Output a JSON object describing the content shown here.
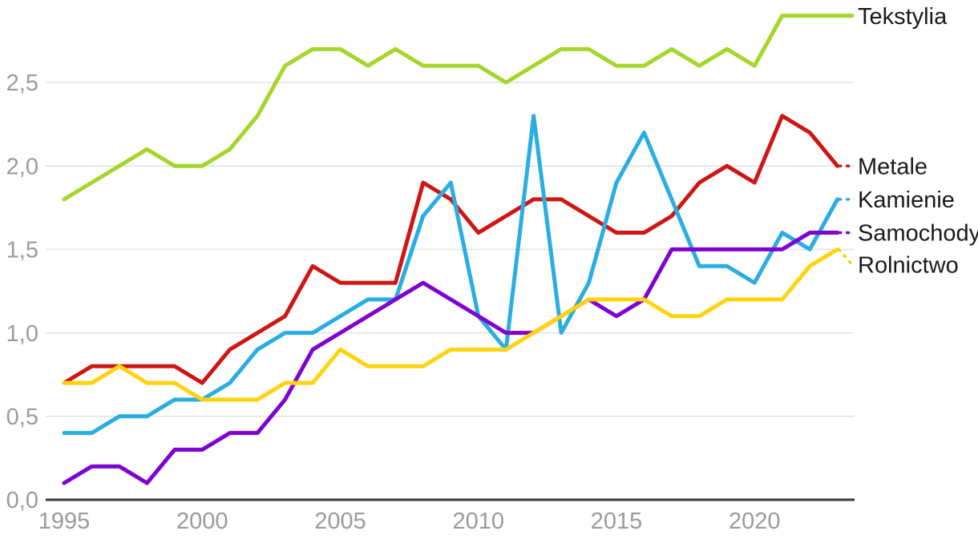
{
  "chart_data": {
    "type": "line",
    "x": [
      1995,
      1996,
      1997,
      1998,
      1999,
      2000,
      2001,
      2002,
      2003,
      2004,
      2005,
      2006,
      2007,
      2008,
      2009,
      2010,
      2011,
      2012,
      2013,
      2014,
      2015,
      2016,
      2017,
      2018,
      2019,
      2020,
      2021,
      2022,
      2023
    ],
    "series": [
      {
        "name": "Tekstylia",
        "color": "#a5d62b",
        "values": [
          1.8,
          1.9,
          2.0,
          2.1,
          2.0,
          2.0,
          2.1,
          2.3,
          2.6,
          2.7,
          2.7,
          2.6,
          2.7,
          2.6,
          2.6,
          2.6,
          2.5,
          2.6,
          2.7,
          2.7,
          2.6,
          2.6,
          2.7,
          2.6,
          2.7,
          2.6,
          2.9,
          2.9,
          2.9
        ]
      },
      {
        "name": "Metale",
        "color": "#ce1615",
        "values": [
          0.7,
          0.8,
          0.8,
          0.8,
          0.8,
          0.7,
          0.9,
          1.0,
          1.1,
          1.4,
          1.3,
          1.3,
          1.3,
          1.9,
          1.8,
          1.6,
          1.7,
          1.8,
          1.8,
          1.7,
          1.6,
          1.6,
          1.7,
          1.9,
          2.0,
          1.9,
          2.3,
          2.2,
          2.0
        ]
      },
      {
        "name": "Kamienie",
        "color": "#29ade2",
        "values": [
          0.4,
          0.4,
          0.5,
          0.5,
          0.6,
          0.6,
          0.7,
          0.9,
          1.0,
          1.0,
          1.1,
          1.2,
          1.2,
          1.7,
          1.9,
          1.1,
          0.9,
          2.3,
          1.0,
          1.3,
          1.9,
          2.2,
          1.8,
          1.4,
          1.4,
          1.3,
          1.6,
          1.5,
          1.8
        ]
      },
      {
        "name": "Samochody",
        "color": "#7f03cf",
        "values": [
          0.1,
          0.2,
          0.2,
          0.1,
          0.3,
          0.3,
          0.4,
          0.4,
          0.6,
          0.9,
          1.0,
          1.1,
          1.2,
          1.3,
          1.2,
          1.1,
          1.0,
          1.0,
          1.1,
          1.2,
          1.1,
          1.2,
          1.5,
          1.5,
          1.5,
          1.5,
          1.5,
          1.6,
          1.6
        ]
      },
      {
        "name": "Rolnictwo",
        "color": "#ffd30e",
        "values": [
          0.7,
          0.7,
          0.8,
          0.7,
          0.7,
          0.6,
          0.6,
          0.6,
          0.7,
          0.7,
          0.9,
          0.8,
          0.8,
          0.8,
          0.9,
          0.9,
          0.9,
          1.0,
          1.1,
          1.2,
          1.2,
          1.2,
          1.1,
          1.1,
          1.2,
          1.2,
          1.2,
          1.4,
          1.5
        ]
      }
    ],
    "x_tick_years": [
      1995,
      2000,
      2005,
      2010,
      2015,
      2020
    ],
    "x_tick_labels": [
      "1995",
      "2000",
      "2005",
      "2010",
      "2015",
      "2020"
    ],
    "y_tick_values": [
      0,
      0.5,
      1.0,
      1.5,
      2.0,
      2.5
    ],
    "y_tick_labels": [
      "0,0",
      "0,5",
      "1,0",
      "1,5",
      "2,0",
      "2,5"
    ],
    "ylim": [
      0,
      2.9
    ],
    "grid": true,
    "legend_position": "right-of-line-ends",
    "decimal_separator": ",",
    "colors": {
      "axis_line": "#3b3b3b",
      "gridline": "#e2e2e2",
      "tick_label": "#9b9b9b",
      "legend_text": "#1a1a1a",
      "background": "#ffffff"
    }
  }
}
